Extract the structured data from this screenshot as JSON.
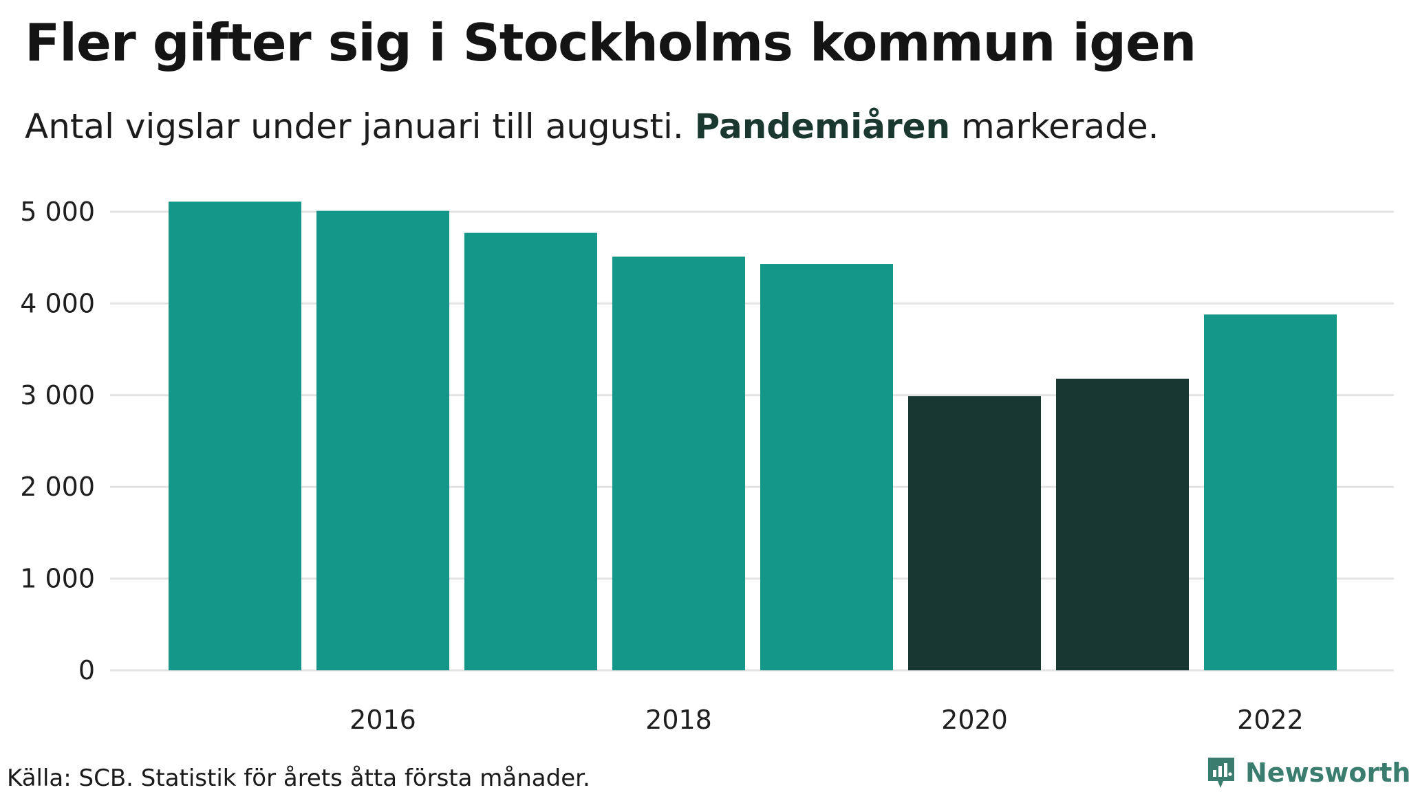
{
  "header": {
    "title": "Fler gifter sig i Stockholms kommun igen",
    "subtitle_pre": "Antal vigslar under januari till augusti. ",
    "subtitle_highlight": "Pandemiåren",
    "subtitle_post": " markerade."
  },
  "footer": {
    "source": "Källa: SCB. Statistik för årets åtta första månader.",
    "brand": "Newsworthy"
  },
  "colors": {
    "regular_bar": "#149689",
    "pandemic_bar": "#183731",
    "gridline": "#e3e3e3",
    "brand": "#3a7d6e"
  },
  "chart_data": {
    "type": "bar",
    "title": "Fler gifter sig i Stockholms kommun igen",
    "subtitle": "Antal vigslar under januari till augusti. Pandemiåren markerade.",
    "xlabel": "",
    "ylabel": "",
    "categories": [
      2015,
      2016,
      2017,
      2018,
      2019,
      2020,
      2021,
      2022
    ],
    "values": [
      5110,
      5010,
      4770,
      4510,
      4430,
      2990,
      3180,
      3880
    ],
    "highlighted": [
      false,
      false,
      false,
      false,
      false,
      true,
      true,
      false
    ],
    "highlight_label": "Pandemiåren",
    "ylim": [
      0,
      5200
    ],
    "y_ticks": [
      0,
      1000,
      2000,
      3000,
      4000,
      5000
    ],
    "y_tick_labels": [
      "0",
      "1 000",
      "2 000",
      "3 000",
      "4 000",
      "5 000"
    ],
    "x_tick_labels": [
      "2016",
      "2018",
      "2020",
      "2022"
    ],
    "grid": true,
    "legend": "none"
  }
}
